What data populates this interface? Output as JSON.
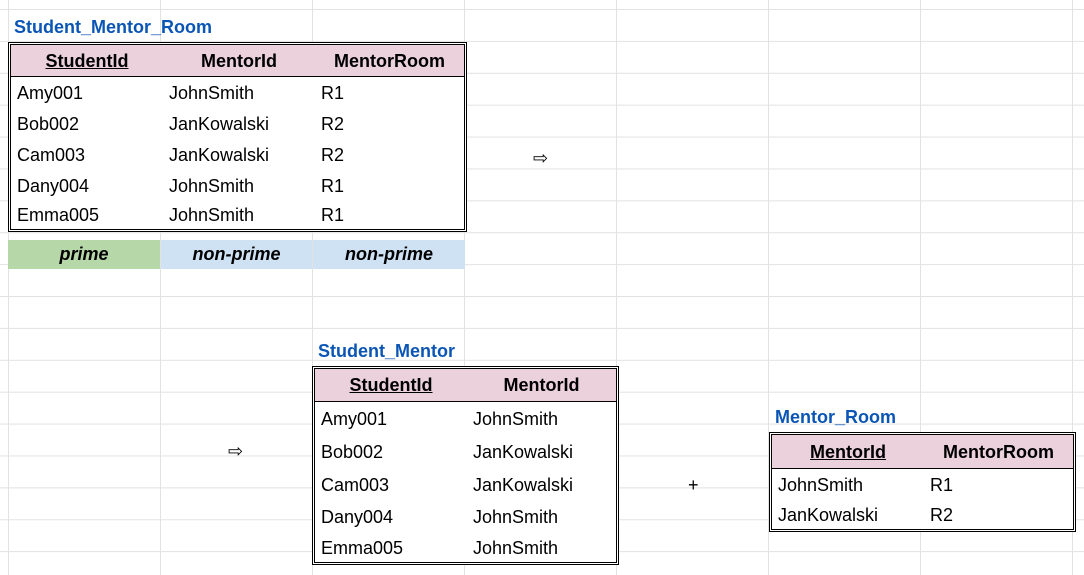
{
  "table1": {
    "title": "Student_Mentor_Room",
    "headers": [
      "StudentId",
      "MentorId",
      "MentorRoom"
    ],
    "rows": [
      [
        "Amy001",
        "JohnSmith",
        "R1"
      ],
      [
        "Bob002",
        "JanKowalski",
        "R2"
      ],
      [
        "Cam003",
        "JanKowalski",
        "R2"
      ],
      [
        "Dany004",
        "JohnSmith",
        "R1"
      ],
      [
        "Emma005",
        "JohnSmith",
        "R1"
      ]
    ],
    "tags": [
      "prime",
      "non-prime",
      "non-prime"
    ],
    "tag_colors": [
      "#b6d7a8",
      "#cfe2f3",
      "#cfe2f3"
    ]
  },
  "table2": {
    "title": "Student_Mentor",
    "headers": [
      "StudentId",
      "MentorId"
    ],
    "rows": [
      [
        "Amy001",
        "JohnSmith"
      ],
      [
        "Bob002",
        "JanKowalski"
      ],
      [
        "Cam003",
        "JanKowalski"
      ],
      [
        "Dany004",
        "JohnSmith"
      ],
      [
        "Emma005",
        "JohnSmith"
      ]
    ]
  },
  "table3": {
    "title": "Mentor_Room",
    "headers": [
      "MentorId",
      "MentorRoom"
    ],
    "rows": [
      [
        "JohnSmith",
        "R1"
      ],
      [
        "JanKowalski",
        "R2"
      ]
    ]
  },
  "symbols": {
    "arrow": "⇨",
    "plus": "+"
  },
  "colors": {
    "title": "#0b55b5",
    "header_bg": "#ead1dc",
    "grid": "#e2e2e2"
  }
}
